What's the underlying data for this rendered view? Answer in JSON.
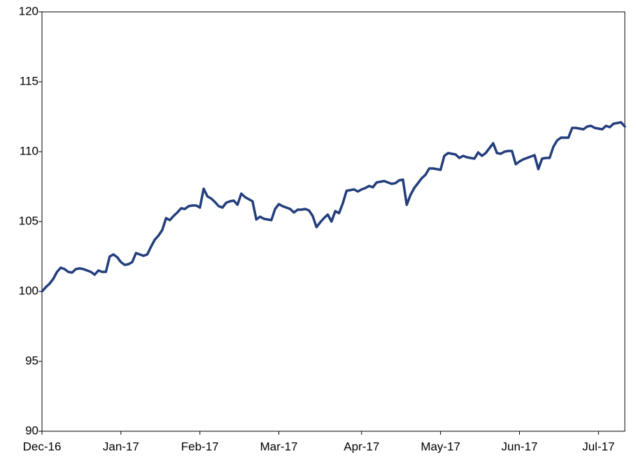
{
  "chart_data": {
    "type": "line",
    "categories": [
      "Dec-16",
      null,
      null,
      null,
      null,
      null,
      null,
      null,
      null,
      null,
      null,
      null,
      null,
      null,
      null,
      null,
      null,
      null,
      null,
      null,
      null,
      "Jan-17",
      null,
      null,
      null,
      null,
      null,
      null,
      null,
      null,
      null,
      null,
      null,
      null,
      null,
      null,
      null,
      null,
      null,
      null,
      null,
      null,
      "Feb-17",
      null,
      null,
      null,
      null,
      null,
      null,
      null,
      null,
      null,
      null,
      null,
      null,
      null,
      null,
      null,
      null,
      null,
      null,
      null,
      null,
      "Mar-17",
      null,
      null,
      null,
      null,
      null,
      null,
      null,
      null,
      null,
      null,
      null,
      null,
      null,
      null,
      null,
      null,
      null,
      null,
      null,
      null,
      null,
      "Apr-17",
      null,
      null,
      null,
      null,
      null,
      null,
      null,
      null,
      null,
      null,
      null,
      null,
      null,
      null,
      null,
      null,
      null,
      null,
      null,
      null,
      "May-17",
      null,
      null,
      null,
      null,
      null,
      null,
      null,
      null,
      null,
      null,
      null,
      null,
      null,
      null,
      null,
      null,
      null,
      null,
      null,
      null,
      "Jun-17",
      null,
      null,
      null,
      null,
      null,
      null,
      null,
      null,
      null,
      null,
      null,
      null,
      null,
      null,
      null,
      null,
      null,
      null,
      null,
      null,
      "Jul-17",
      null,
      null,
      null,
      null,
      null,
      null,
      null
    ],
    "values": [
      100.0,
      100.3,
      100.55,
      100.9,
      101.4,
      101.7,
      101.6,
      101.4,
      101.35,
      101.6,
      101.65,
      101.6,
      101.5,
      101.4,
      101.2,
      101.5,
      101.4,
      101.4,
      102.5,
      102.65,
      102.45,
      102.1,
      101.9,
      101.95,
      102.1,
      102.75,
      102.65,
      102.55,
      102.65,
      103.2,
      103.7,
      104.0,
      104.4,
      105.25,
      105.1,
      105.4,
      105.65,
      105.95,
      105.9,
      106.1,
      106.15,
      106.15,
      106.0,
      107.35,
      106.8,
      106.65,
      106.4,
      106.1,
      106.0,
      106.35,
      106.45,
      106.5,
      106.2,
      107.0,
      106.75,
      106.6,
      106.45,
      105.15,
      105.35,
      105.2,
      105.15,
      105.1,
      105.9,
      106.25,
      106.1,
      106.0,
      105.9,
      105.65,
      105.85,
      105.85,
      105.9,
      105.8,
      105.4,
      104.6,
      104.95,
      105.25,
      105.5,
      105.0,
      105.75,
      105.6,
      106.3,
      107.2,
      107.25,
      107.3,
      107.15,
      107.3,
      107.4,
      107.55,
      107.45,
      107.8,
      107.85,
      107.9,
      107.8,
      107.7,
      107.75,
      107.95,
      108.0,
      106.2,
      106.9,
      107.4,
      107.75,
      108.1,
      108.35,
      108.8,
      108.8,
      108.75,
      108.7,
      109.7,
      109.9,
      109.85,
      109.8,
      109.55,
      109.7,
      109.6,
      109.55,
      109.5,
      109.95,
      109.7,
      109.9,
      110.25,
      110.6,
      109.9,
      109.85,
      110.0,
      110.05,
      110.05,
      109.1,
      109.3,
      109.45,
      109.55,
      109.65,
      109.75,
      108.75,
      109.5,
      109.55,
      109.55,
      110.35,
      110.8,
      111.0,
      111.0,
      111.0,
      111.7,
      111.7,
      111.65,
      111.6,
      111.8,
      111.85,
      111.7,
      111.65,
      111.6,
      111.85,
      111.75,
      112.0,
      112.05,
      112.1,
      111.8
    ],
    "color": "#233e7c",
    "ylim": [
      90,
      120
    ],
    "yticks": [
      90,
      95,
      100,
      105,
      110,
      115,
      120
    ],
    "grid": false
  }
}
